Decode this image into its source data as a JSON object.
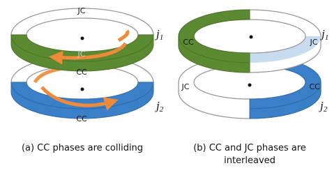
{
  "panels": [
    {
      "jc_top": "JC",
      "jc_ghost": "JC",
      "cc_top": "CC",
      "cc_bottom": "CC",
      "ring1": {
        "letter": "j",
        "index": "1"
      },
      "ring2": {
        "letter": "j",
        "index": "2"
      },
      "caption": "(a) CC phases are colliding"
    },
    {
      "cc_top": "CC",
      "jc_top": "JC",
      "jc_bottom": "JC",
      "cc_bottom": "CC",
      "ring1": {
        "letter": "j",
        "index": "1"
      },
      "ring2": {
        "letter": "j",
        "index": "2"
      },
      "caption": "(b) CC and JC phases are interleaved"
    }
  ]
}
